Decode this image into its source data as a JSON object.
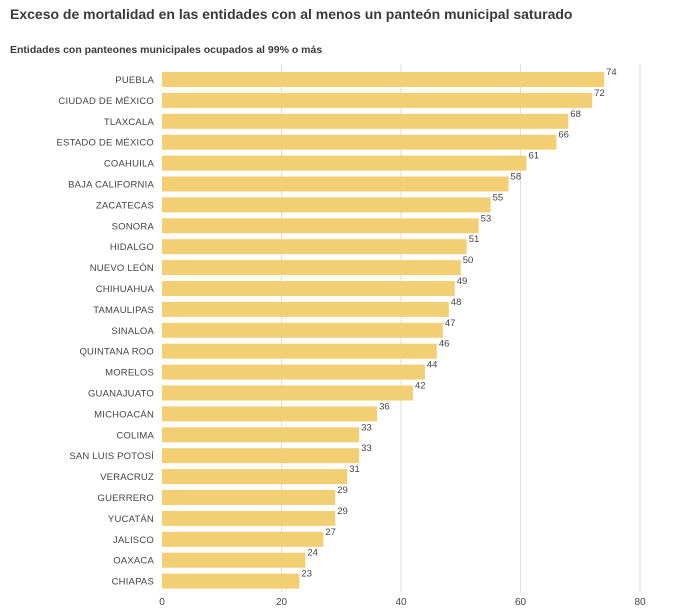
{
  "title": "Exceso de mortalidad en las entidades con al menos un panteón municipal saturado",
  "subtitle": "Entidades con panteones municipales ocupados al 99% o más",
  "colors": {
    "bar": "#f2cf73",
    "grid": "#dddddd",
    "text": "#444444"
  },
  "chart_data": {
    "type": "bar",
    "orientation": "horizontal",
    "title": "Exceso de mortalidad en las entidades con al menos un panteón municipal saturado",
    "subtitle": "Entidades con panteones municipales ocupados al 99% o más",
    "categories": [
      "PUEBLA",
      "CIUDAD DE MÉXICO",
      "TLAXCALA",
      "ESTADO DE MÉXICO",
      "COAHUILA",
      "BAJA CALIFORNIA",
      "ZACATECAS",
      "SONORA",
      "HIDALGO",
      "NUEVO LEÓN",
      "CHIHUAHUA",
      "TAMAULIPAS",
      "SINALOA",
      "QUINTANA ROO",
      "MORELOS",
      "GUANAJUATO",
      "MICHOACÁN",
      "COLIMA",
      "SAN LUIS POTOSÍ",
      "VERACRUZ",
      "GUERRERO",
      "YUCATÁN",
      "JALISCO",
      "OAXACA",
      "CHIAPAS"
    ],
    "values": [
      74,
      72,
      68,
      66,
      61,
      58,
      55,
      53,
      51,
      50,
      49,
      48,
      47,
      46,
      44,
      42,
      36,
      33,
      33,
      31,
      29,
      29,
      27,
      24,
      23
    ],
    "xlim": [
      0,
      80
    ],
    "xticks": [
      0,
      20,
      40,
      60,
      80
    ],
    "grid": true,
    "legend": "none"
  }
}
